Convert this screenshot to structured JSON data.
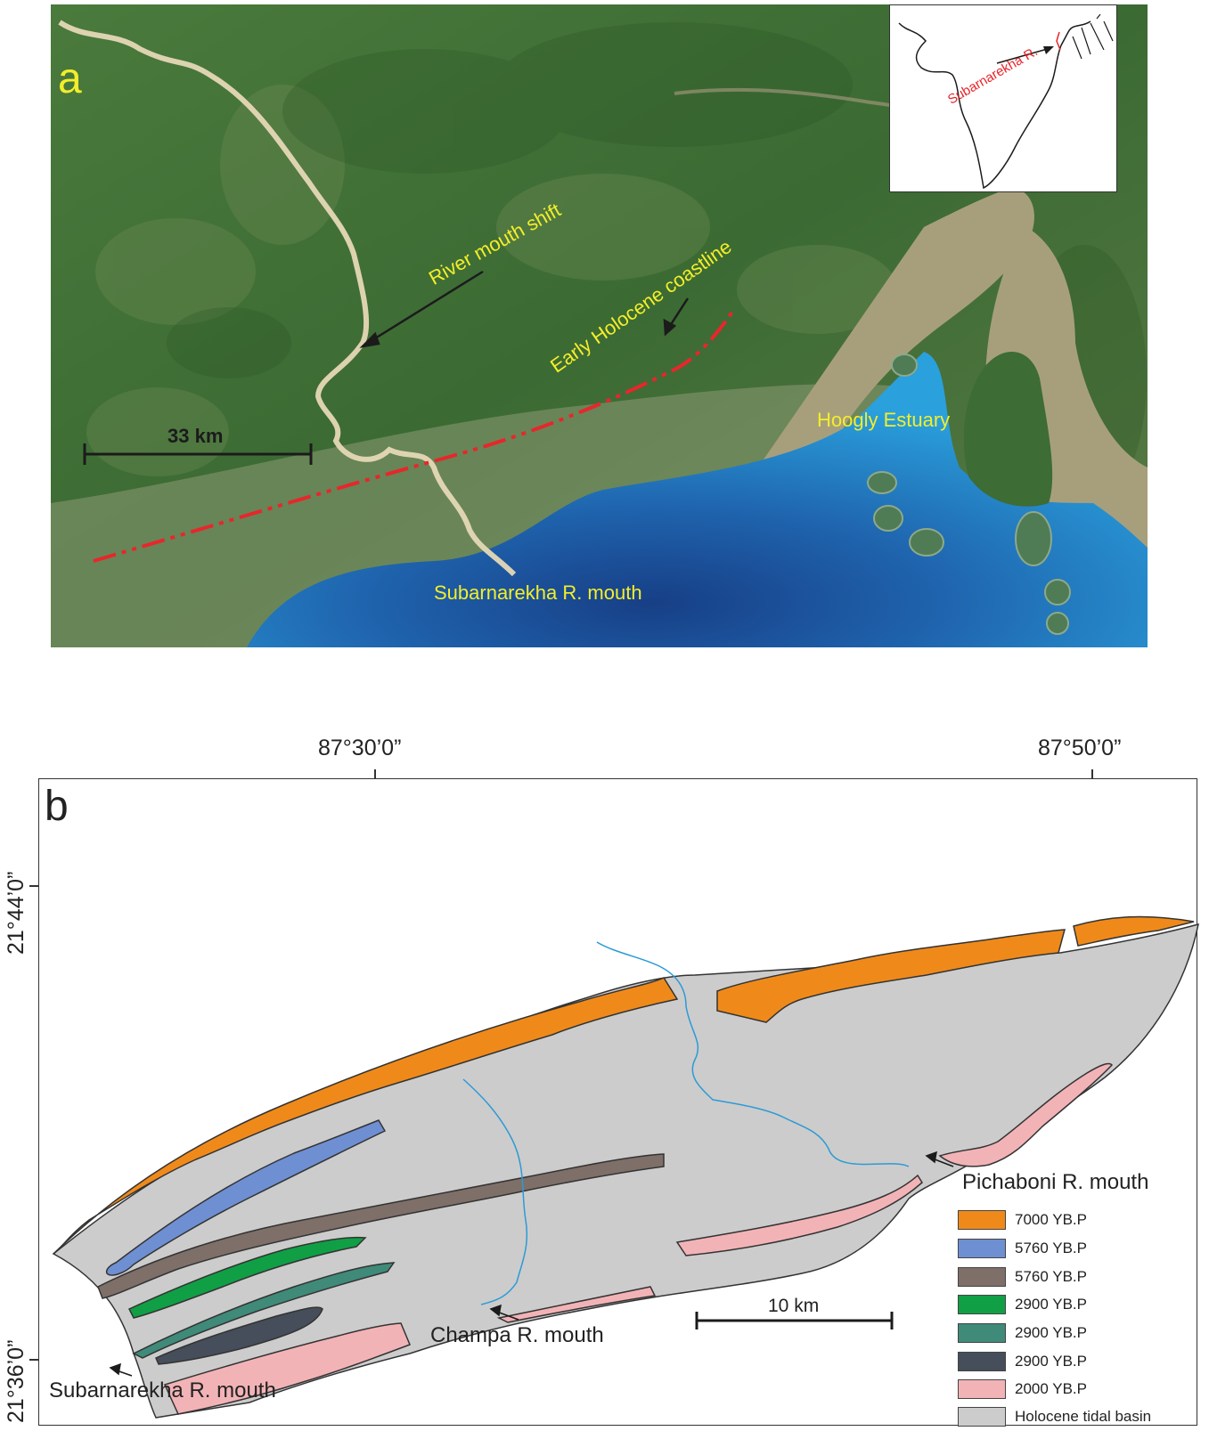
{
  "panel_a": {
    "letter": "a",
    "scale_label": "33 km",
    "labels": {
      "river_mouth_shift": "River mouth shift",
      "early_holocene_coastline": "Early Holocene coastline",
      "hoogly_estuary": "Hoogly Estuary",
      "subarnarekha_mouth": "Subarnarekha R. mouth"
    },
    "inset": {
      "label": "Subarnarekha R."
    },
    "colors": {
      "label": "#f3ee2b",
      "coastline": "#e8262b",
      "water": "#2a8fd0",
      "land": "#3f6b35"
    }
  },
  "panel_b": {
    "letter": "b",
    "coords": {
      "lon_left": "87°30’0”",
      "lon_right": "87°50’0”",
      "lat_upper": "21°44’0”",
      "lat_lower": "21°36’0”"
    },
    "scale_label": "10 km",
    "labels": {
      "pichaboni": "Pichaboni R. mouth",
      "champa": "Champa R. mouth",
      "subarnarekha": "Subarnarekha R. mouth"
    },
    "legend": [
      {
        "label": "7000 YB.P",
        "color": "#ef8a1a"
      },
      {
        "label": "5760 YB.P",
        "color": "#6f8fd3"
      },
      {
        "label": "5760 YB.P",
        "color": "#7e6f69"
      },
      {
        "label": "2900 YB.P",
        "color": "#109f45"
      },
      {
        "label": "2900 YB.P",
        "color": "#3f8a78"
      },
      {
        "label": "2900 YB.P",
        "color": "#454e5a"
      },
      {
        "label": "2000 YB.P",
        "color": "#f2b3b7"
      },
      {
        "label": "Holocene tidal basin",
        "color": "#cccccc"
      }
    ],
    "river_color": "#2c9ad6"
  }
}
